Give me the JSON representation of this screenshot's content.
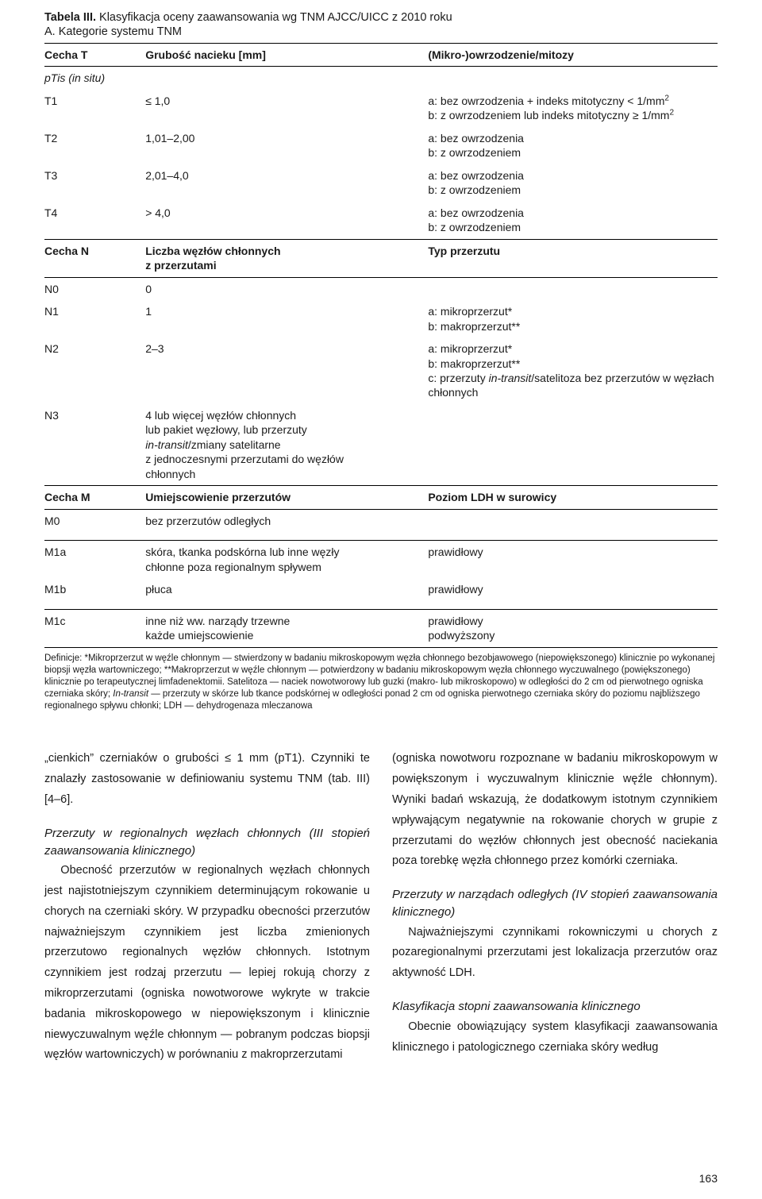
{
  "colors": {
    "text": "#1a1a1a",
    "background": "#ffffff",
    "rule": "#000000"
  },
  "typography": {
    "base_family": "Myriad Pro / Segoe UI / Helvetica",
    "table_fontsize_pt": 10.5,
    "body_fontsize_pt": 11,
    "defs_fontsize_pt": 8.5
  },
  "table": {
    "title_prefix": "Tabela III.",
    "title_rest": " Klasyfikacja oceny zaawansowania wg TNM AJCC/UICC z 2010 roku",
    "subtitle": "A. Kategorie systemu TNM",
    "headerA": {
      "c1": "Cecha T",
      "c2": "Grubość nacieku [mm]",
      "c3": "(Mikro-)owrzodzenie/mitozy"
    },
    "ptis": "pTis (in situ)",
    "rowsA": [
      {
        "c1": "T1",
        "c2": "≤ 1,0",
        "c3": "a: bez owrzodzenia + indeks mitotyczny < 1/mm²\nb: z owrzodzeniem lub indeks mitotyczny ≥ 1/mm²"
      },
      {
        "c1": "T2",
        "c2": "1,01–2,00",
        "c3": "a: bez owrzodzenia\nb: z owrzodzeniem"
      },
      {
        "c1": "T3",
        "c2": "2,01–4,0",
        "c3": "a: bez owrzodzenia\nb: z owrzodzeniem"
      },
      {
        "c1": "T4",
        "c2": "> 4,0",
        "c3": "a: bez owrzodzenia\nb: z owrzodzeniem"
      }
    ],
    "headerB": {
      "c1": "Cecha N",
      "c2": "Liczba węzłów chłonnych\nz przerzutami",
      "c3": "Typ przerzutu"
    },
    "rowsB": [
      {
        "c1": "N0",
        "c2": "0",
        "c3": ""
      },
      {
        "c1": "N1",
        "c2": "1",
        "c3": "a: mikroprzerzut*\nb: makroprzerzut**"
      },
      {
        "c1": "N2",
        "c2": "2–3",
        "c3": "a: mikroprzerzut*\nb: makroprzerzut**\nc: przerzuty in-transit/satelitoza bez przerzutów w węzłach chłonnych"
      },
      {
        "c1": "N3",
        "c2": "4 lub więcej węzłów chłonnych lub pakiet węzłowy, lub przerzuty in-transit/zmiany satelitarne z jednoczesnymi przerzutami do węzłów chłonnych",
        "c3": ""
      }
    ],
    "headerC": {
      "c1": "Cecha M",
      "c2": "Umiejscowienie przerzutów",
      "c3": "Poziom LDH w surowicy"
    },
    "rowsC": [
      {
        "c1": "M0",
        "c2": "bez przerzutów odległych",
        "c3": ""
      },
      {
        "c1": "M1a",
        "c2": "skóra, tkanka podskórna lub inne węzły chłonne poza regionalnym spływem",
        "c3": "prawidłowy"
      },
      {
        "c1": "M1b",
        "c2": "płuca",
        "c3": "prawidłowy"
      },
      {
        "c1": "M1c",
        "c2": "inne niż ww. narządy trzewne\nkażde umiejscowienie",
        "c3": "prawidłowy\npodwyższony"
      }
    ],
    "definitions": "Definicje: *Mikroprzerzut w węźle chłonnym — stwierdzony w badaniu mikroskopowym węzła chłonnego bezobjawowego (niepowiększonego) klinicznie po wykonanej biopsji węzła wartowniczego; **Makroprzerzut w węźle chłonnym — potwierdzony w badaniu mikroskopowym węzła chłonnego wyczuwalnego (powiększonego) klinicznie po terapeutycznej limfadenektomii. Satelitoza — naciek nowotworowy lub guzki (makro- lub mikroskopowo) w odległości do 2 cm od pierwotnego ogniska czerniaka skóry; In-transit — przerzuty w skórze lub tkance podskórnej w odległości ponad 2 cm od ogniska pierwotnego czerniaka skóry do poziomu najbliższego regionalnego spływu chłonki; LDH — dehydrogenaza mleczanowa"
  },
  "body": {
    "left": {
      "p1": "„cienkich” czerniaków o grubości ≤ 1 mm (pT1). Czynniki te znalazły zastosowanie w definiowaniu systemu TNM (tab. III) [4–6].",
      "h1": "Przerzuty w regionalnych węzłach chłonnych (III stopień zaawansowania klinicznego)",
      "p2": "Obecność przerzutów w regionalnych węzłach chłonnych jest najistotniejszym czynnikiem determinującym rokowanie u chorych na czerniaki skóry. W przypadku obecności przerzutów najważniejszym czynnikiem jest liczba zmienionych przerzutowo regionalnych węzłów chłonnych. Istotnym czynnikiem jest rodzaj przerzutu — lepiej rokują chorzy z mikroprzerzutami (ogniska nowotworowe wykryte w trakcie badania mikroskopowego w niepowiększonym i klinicznie niewyczuwalnym węźle chłonnym — pobranym podczas biopsji węzłów wartowniczych) w porównaniu z makroprzerzutami"
    },
    "right": {
      "p1": "(ogniska nowotworu rozpoznane w badaniu mikroskopowym w powiększonym i wyczuwalnym klinicznie węźle chłonnym). Wyniki badań wskazują, że dodatkowym istotnym czynnikiem wpływającym negatywnie na rokowanie chorych w grupie z przerzutami do węzłów chłonnych jest obecność naciekania poza torebkę węzła chłonnego przez komórki czerniaka.",
      "h1": "Przerzuty w narządach odległych (IV stopień zaawansowania klinicznego)",
      "p2": "Najważniejszymi czynnikami rokowniczymi u chorych z pozaregionalnymi przerzutami jest lokalizacja przerzutów oraz aktywność LDH.",
      "h2": "Klasyfikacja stopni zaawansowania klinicznego",
      "p3": "Obecnie obowiązujący system klasyfikacji zaawansowania klinicznego i patologicznego czerniaka skóry według"
    }
  },
  "page_number": "163"
}
